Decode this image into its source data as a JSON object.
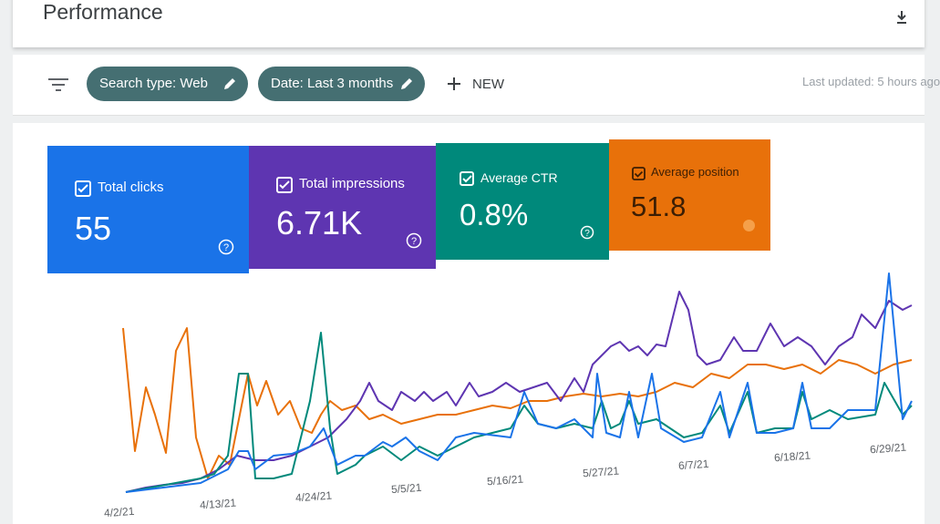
{
  "header": {
    "title": "Performance"
  },
  "filters": {
    "chips": [
      "Search type: Web",
      "Date: Last 3 months"
    ],
    "new_label": "NEW",
    "last_updated": "Last updated: 5 hours ago"
  },
  "metrics": [
    {
      "label": "Total clicks",
      "value": "55"
    },
    {
      "label": "Total impressions",
      "value": "6.71K"
    },
    {
      "label": "Average CTR",
      "value": "0.8%"
    },
    {
      "label": "Average position",
      "value": "51.8"
    }
  ],
  "chart": {
    "x_labels": [
      "4/2/21",
      "4/13/21",
      "4/24/21",
      "5/5/21",
      "5/16/21",
      "5/27/21",
      "6/7/21",
      "6/18/21",
      "6/29/21"
    ]
  }
}
